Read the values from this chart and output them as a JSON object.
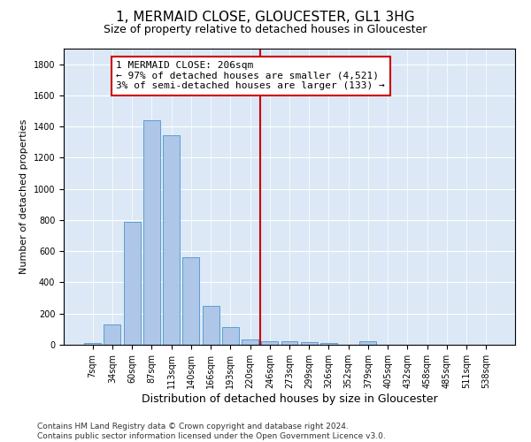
{
  "title": "1, MERMAID CLOSE, GLOUCESTER, GL1 3HG",
  "subtitle": "Size of property relative to detached houses in Gloucester",
  "xlabel": "Distribution of detached houses by size in Gloucester",
  "ylabel": "Number of detached properties",
  "categories": [
    "7sqm",
    "34sqm",
    "60sqm",
    "87sqm",
    "113sqm",
    "140sqm",
    "166sqm",
    "193sqm",
    "220sqm",
    "246sqm",
    "273sqm",
    "299sqm",
    "326sqm",
    "352sqm",
    "379sqm",
    "405sqm",
    "432sqm",
    "458sqm",
    "485sqm",
    "511sqm",
    "538sqm"
  ],
  "values": [
    10,
    130,
    790,
    1440,
    1345,
    560,
    250,
    115,
    35,
    25,
    20,
    15,
    10,
    0,
    20,
    0,
    0,
    0,
    0,
    0,
    0
  ],
  "bar_color": "#aec6e8",
  "bar_edge_color": "#5a9fd4",
  "vline_x": 8.5,
  "vline_color": "#cc0000",
  "annotation_text": "1 MERMAID CLOSE: 206sqm\n← 97% of detached houses are smaller (4,521)\n3% of semi-detached houses are larger (133) →",
  "annotation_box_color": "#ffffff",
  "annotation_box_edge": "#cc0000",
  "ylim": [
    0,
    1900
  ],
  "yticks": [
    0,
    200,
    400,
    600,
    800,
    1000,
    1200,
    1400,
    1600,
    1800
  ],
  "bg_color": "#dce8f5",
  "footer_text": "Contains HM Land Registry data © Crown copyright and database right 2024.\nContains public sector information licensed under the Open Government Licence v3.0.",
  "title_fontsize": 11,
  "subtitle_fontsize": 9,
  "ylabel_fontsize": 8,
  "xlabel_fontsize": 9,
  "tick_fontsize": 7,
  "annotation_fontsize": 8,
  "footer_fontsize": 6.5
}
